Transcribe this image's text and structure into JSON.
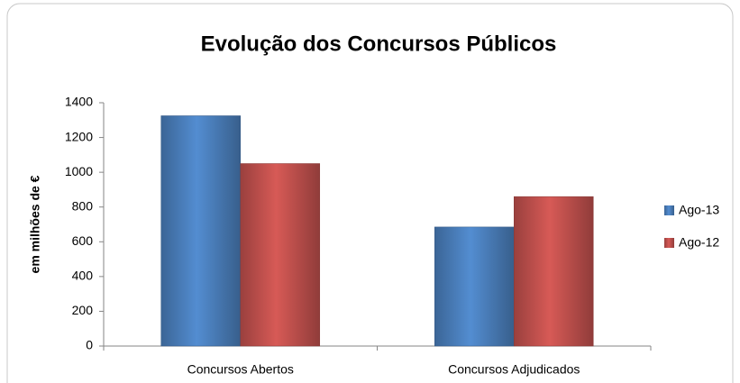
{
  "chart_data": {
    "type": "bar",
    "title": "Evolução dos Concursos Públicos",
    "y_label": "em milhões de €",
    "categories": [
      "Concursos Abertos",
      "Concursos Adjudicados"
    ],
    "series": [
      {
        "name": "Ago-13",
        "color": "#4a7ebb",
        "values": [
          1325,
          685
        ]
      },
      {
        "name": "Ago-12",
        "color": "#c0504d",
        "values": [
          1050,
          860
        ]
      }
    ],
    "ylim": [
      0,
      1400
    ],
    "yticks": [
      0,
      200,
      400,
      600,
      800,
      1000,
      1200,
      1400
    ],
    "grid": false,
    "legend": "right"
  }
}
